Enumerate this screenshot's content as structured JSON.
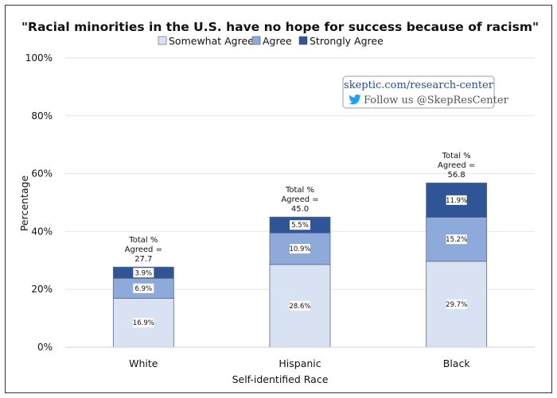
{
  "chart_data": {
    "type": "bar",
    "stacked": true,
    "title": "\"Racial minorities in the U.S. have no hope for success because of racism\"",
    "xlabel": "Self-identified Race",
    "ylabel": "Percentage",
    "ylim": [
      0,
      100
    ],
    "yticks": [
      "0%",
      "20%",
      "40%",
      "60%",
      "80%",
      "100%"
    ],
    "ytick_values": [
      0,
      20,
      40,
      60,
      80,
      100
    ],
    "grid": true,
    "legend_position": "top-center",
    "categories": [
      "White",
      "Hispanic",
      "Black"
    ],
    "series": [
      {
        "name": "Somewhat Agree",
        "color": "#d9e2f3",
        "values": [
          16.9,
          28.6,
          29.7
        ],
        "labels": [
          "16.9%",
          "28.6%",
          "29.7%"
        ]
      },
      {
        "name": "Agree",
        "color": "#8eaadb",
        "values": [
          6.9,
          10.9,
          15.2
        ],
        "labels": [
          "6.9%",
          "10.9%",
          "15.2%"
        ]
      },
      {
        "name": "Strongly Agree",
        "color": "#2f5597",
        "values": [
          3.9,
          5.5,
          11.9
        ],
        "labels": [
          "3.9%",
          "5.5%",
          "11.9%"
        ]
      }
    ],
    "totals": [
      {
        "line1": "Total %",
        "line2": "Agreed =",
        "line3": "27.7",
        "value": 27.7
      },
      {
        "line1": "Total %",
        "line2": "Agreed =",
        "line3": "45.0",
        "value": 45.0
      },
      {
        "line1": "Total %",
        "line2": "Agreed =",
        "line3": "56.8",
        "value": 56.8
      }
    ]
  },
  "watermark": {
    "link": "skeptic.com/research-center",
    "follow": "Follow us @SkepResCenter",
    "icon": "twitter-bird-icon",
    "icon_color": "#1da1f2"
  }
}
